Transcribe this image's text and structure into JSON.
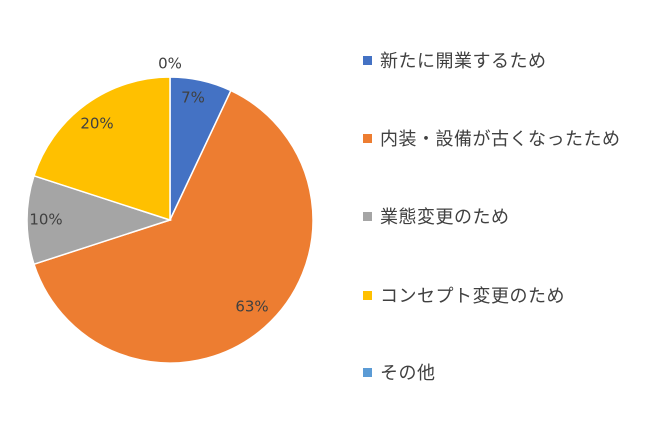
{
  "chart_data": {
    "type": "pie",
    "categories": [
      "新たに開業するため",
      "内装・設備が古くなったため",
      "業態変更のため",
      "コンセプト変更のため",
      "その他"
    ],
    "values": [
      7,
      63,
      10,
      20,
      0
    ],
    "data_labels": [
      "7%",
      "63%",
      "10%",
      "20%",
      "0%"
    ],
    "colors": [
      "#4472C4",
      "#ED7D31",
      "#A5A5A5",
      "#FFC000",
      "#5B9BD5"
    ],
    "legend_position": "right",
    "start_angle": "top, clockwise"
  }
}
